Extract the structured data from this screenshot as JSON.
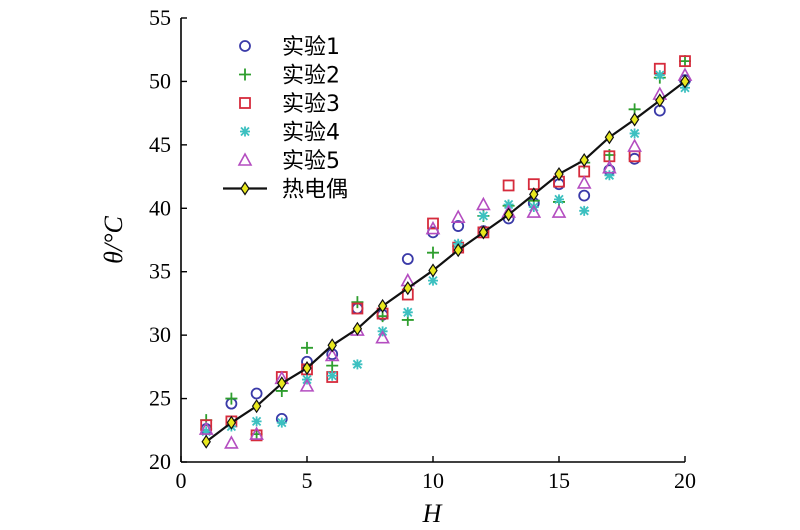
{
  "chart_data": {
    "type": "scatter",
    "xlabel": "H",
    "ylabel": "θ/°C",
    "xlim": [
      0,
      20
    ],
    "ylim": [
      20,
      55
    ],
    "x_ticks": [
      0,
      5,
      10,
      15,
      20
    ],
    "y_ticks": [
      20,
      25,
      30,
      35,
      40,
      45,
      50,
      55
    ],
    "legend_position": "top-left",
    "grid": false,
    "series": [
      {
        "name": "实验1",
        "marker": "circle",
        "color": "#3a3aa8",
        "x": [
          1,
          2,
          3,
          4,
          5,
          6,
          7,
          8,
          9,
          10,
          11,
          12,
          13,
          14,
          15,
          16,
          17,
          18,
          19,
          20
        ],
        "y": [
          22.6,
          24.6,
          25.4,
          23.4,
          27.9,
          28.5,
          32.1,
          31.6,
          36.0,
          38.1,
          38.6,
          38.2,
          39.2,
          40.4,
          41.9,
          41.0,
          43.0,
          43.9,
          47.7,
          50.1
        ]
      },
      {
        "name": "实验2",
        "marker": "plus",
        "color": "#2e9e2e",
        "x": [
          1,
          2,
          3,
          4,
          5,
          6,
          7,
          8,
          9,
          10,
          11,
          12,
          13,
          14,
          15,
          16,
          17,
          18,
          19,
          20
        ],
        "y": [
          23.3,
          25.0,
          22.2,
          25.6,
          29.0,
          27.6,
          32.6,
          31.5,
          31.2,
          36.5,
          37.0,
          39.4,
          40.2,
          40.6,
          40.5,
          43.6,
          44.2,
          47.8,
          50.3,
          51.6
        ]
      },
      {
        "name": "实验3",
        "marker": "square",
        "color": "#d62b3c",
        "x": [
          1,
          2,
          3,
          4,
          5,
          6,
          7,
          8,
          9,
          10,
          11,
          12,
          13,
          14,
          15,
          16,
          17,
          18,
          19,
          20
        ],
        "y": [
          22.9,
          23.2,
          22.1,
          26.7,
          27.3,
          26.7,
          32.1,
          31.7,
          33.2,
          38.8,
          36.9,
          38.1,
          41.8,
          41.9,
          42.1,
          42.9,
          44.1,
          44.1,
          51.0,
          51.6
        ]
      },
      {
        "name": "实验4",
        "marker": "star",
        "color": "#3cc0c0",
        "x": [
          1,
          2,
          3,
          4,
          5,
          6,
          7,
          8,
          9,
          10,
          11,
          12,
          13,
          14,
          15,
          16,
          17,
          18,
          19,
          20
        ],
        "y": [
          22.4,
          22.8,
          23.2,
          23.1,
          26.5,
          26.8,
          27.7,
          30.3,
          31.8,
          34.3,
          37.2,
          39.4,
          40.3,
          40.1,
          40.7,
          39.8,
          42.6,
          45.9,
          50.5,
          49.5
        ]
      },
      {
        "name": "实验5",
        "marker": "triangle",
        "color": "#b44dc0",
        "x": [
          1,
          2,
          3,
          4,
          5,
          6,
          7,
          8,
          9,
          10,
          11,
          12,
          13,
          14,
          15,
          16,
          17,
          18,
          19,
          20
        ],
        "y": [
          22.6,
          21.5,
          22.2,
          26.6,
          26.0,
          28.4,
          30.4,
          29.8,
          34.3,
          38.4,
          39.3,
          40.3,
          39.7,
          39.7,
          39.7,
          42.0,
          43.2,
          44.9,
          49.0,
          50.5
        ]
      },
      {
        "name": "热电偶",
        "marker": "diamond-line",
        "color": "#111111",
        "fill": "#e8e81e",
        "x": [
          1,
          2,
          3,
          4,
          5,
          6,
          7,
          8,
          9,
          10,
          11,
          12,
          13,
          14,
          15,
          16,
          17,
          18,
          19,
          20
        ],
        "y": [
          21.6,
          23.1,
          24.4,
          26.2,
          27.4,
          29.2,
          30.5,
          32.3,
          33.7,
          35.1,
          36.7,
          38.1,
          39.5,
          41.1,
          42.7,
          43.8,
          45.6,
          47.0,
          48.5,
          50.0
        ]
      }
    ]
  }
}
